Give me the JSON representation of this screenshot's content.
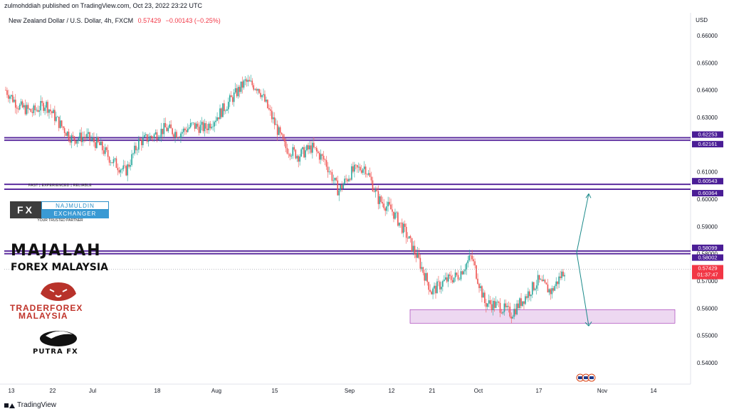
{
  "header": {
    "publisher_line": "zulmohddiah published on TradingView.com, Oct 23, 2022 23:22 UTC",
    "symbol_line": "New Zealand Dollar / U.S. Dollar, 4h, FXCM",
    "last_price": "0.57429",
    "change": "−0.00143 (−0.25%)",
    "currency": "USD"
  },
  "footer": {
    "brand": "TradingView"
  },
  "colors": {
    "up": "#26a69a",
    "down": "#ef5350",
    "levels": "#5b2c9e",
    "zone": "#e1bee7",
    "arrow": "#1b8a8a",
    "price_tag": "#f23645"
  },
  "logos": {
    "fx_tagline": "FAST | EXPERIENCED | RELIABLE",
    "fx_mark": "FX",
    "fx_name": "NAJMULDIN",
    "fx_exchanger": "EXCHANGER",
    "fx_partner": "YOUR TRUSTED PARTNER",
    "majalah": "MAJALAH",
    "majalah_sub": "FOREX MALAYSIA",
    "trader": "TRADERFOREX",
    "trader_sub": "MALAYSIA",
    "putra": "PUTRA FX"
  },
  "chart_data": {
    "type": "line",
    "title": "",
    "ylabel": "",
    "xlabel": "",
    "ylim": [
      0.534,
      0.668
    ],
    "y_ticks": [
      "0.66000",
      "0.65000",
      "0.64000",
      "0.63000",
      "0.62000",
      "0.61000",
      "0.60000",
      "0.59000",
      "0.58000",
      "0.57000",
      "0.56000",
      "0.55000",
      "0.54000"
    ],
    "x_ticks": [
      "13",
      "22",
      "Jul",
      "18",
      "Aug",
      "15",
      "Sep",
      "12",
      "21",
      "Oct",
      "17",
      "Nov",
      "14"
    ],
    "price_series_anchors": [
      [
        "13",
        0.64
      ],
      [
        "16",
        0.634
      ],
      [
        "22",
        0.632
      ],
      [
        "27",
        0.635
      ],
      [
        "30",
        0.628
      ],
      [
        "Jul",
        0.622
      ],
      [
        "5",
        0.623
      ],
      [
        "8",
        0.62
      ],
      [
        "12",
        0.614
      ],
      [
        "14",
        0.61
      ],
      [
        "18",
        0.621
      ],
      [
        "21",
        0.623
      ],
      [
        "25",
        0.626
      ],
      [
        "28",
        0.624
      ],
      [
        "Aug",
        0.627
      ],
      [
        "5",
        0.626
      ],
      [
        "8",
        0.631
      ],
      [
        "11",
        0.637
      ],
      [
        "15",
        0.643
      ],
      [
        "17",
        0.641
      ],
      [
        "19",
        0.63
      ],
      [
        "22",
        0.619
      ],
      [
        "25",
        0.616
      ],
      [
        "29",
        0.619
      ],
      [
        "Sep",
        0.614
      ],
      [
        "6",
        0.603
      ],
      [
        "9",
        0.61
      ],
      [
        "12",
        0.612
      ],
      [
        "14",
        0.6
      ],
      [
        "19",
        0.596
      ],
      [
        "21",
        0.588
      ],
      [
        "24",
        0.578
      ],
      [
        "27",
        0.566
      ],
      [
        "29",
        0.57
      ],
      [
        "Oct",
        0.572
      ],
      [
        "5",
        0.579
      ],
      [
        "7",
        0.562
      ],
      [
        "10",
        0.561
      ],
      [
        "13",
        0.558
      ],
      [
        "17",
        0.564
      ],
      [
        "19",
        0.57
      ],
      [
        "21",
        0.566
      ],
      [
        "23",
        0.5743
      ]
    ],
    "horizontal_levels": [
      {
        "label": "0.62253",
        "value": 0.62253
      },
      {
        "label": "0.62161",
        "value": 0.62161
      },
      {
        "label": "0.60543",
        "value": 0.60543
      },
      {
        "label": "0.60364",
        "value": 0.60364
      },
      {
        "label": "0.58099",
        "value": 0.58099
      },
      {
        "label": "0.58002",
        "value": 0.58002
      }
    ],
    "support_zone": [
      0.5545,
      0.5595
    ],
    "last_price": {
      "label": "0.57429",
      "value": 0.57429,
      "countdown": "01:37:47"
    },
    "grid": false
  }
}
